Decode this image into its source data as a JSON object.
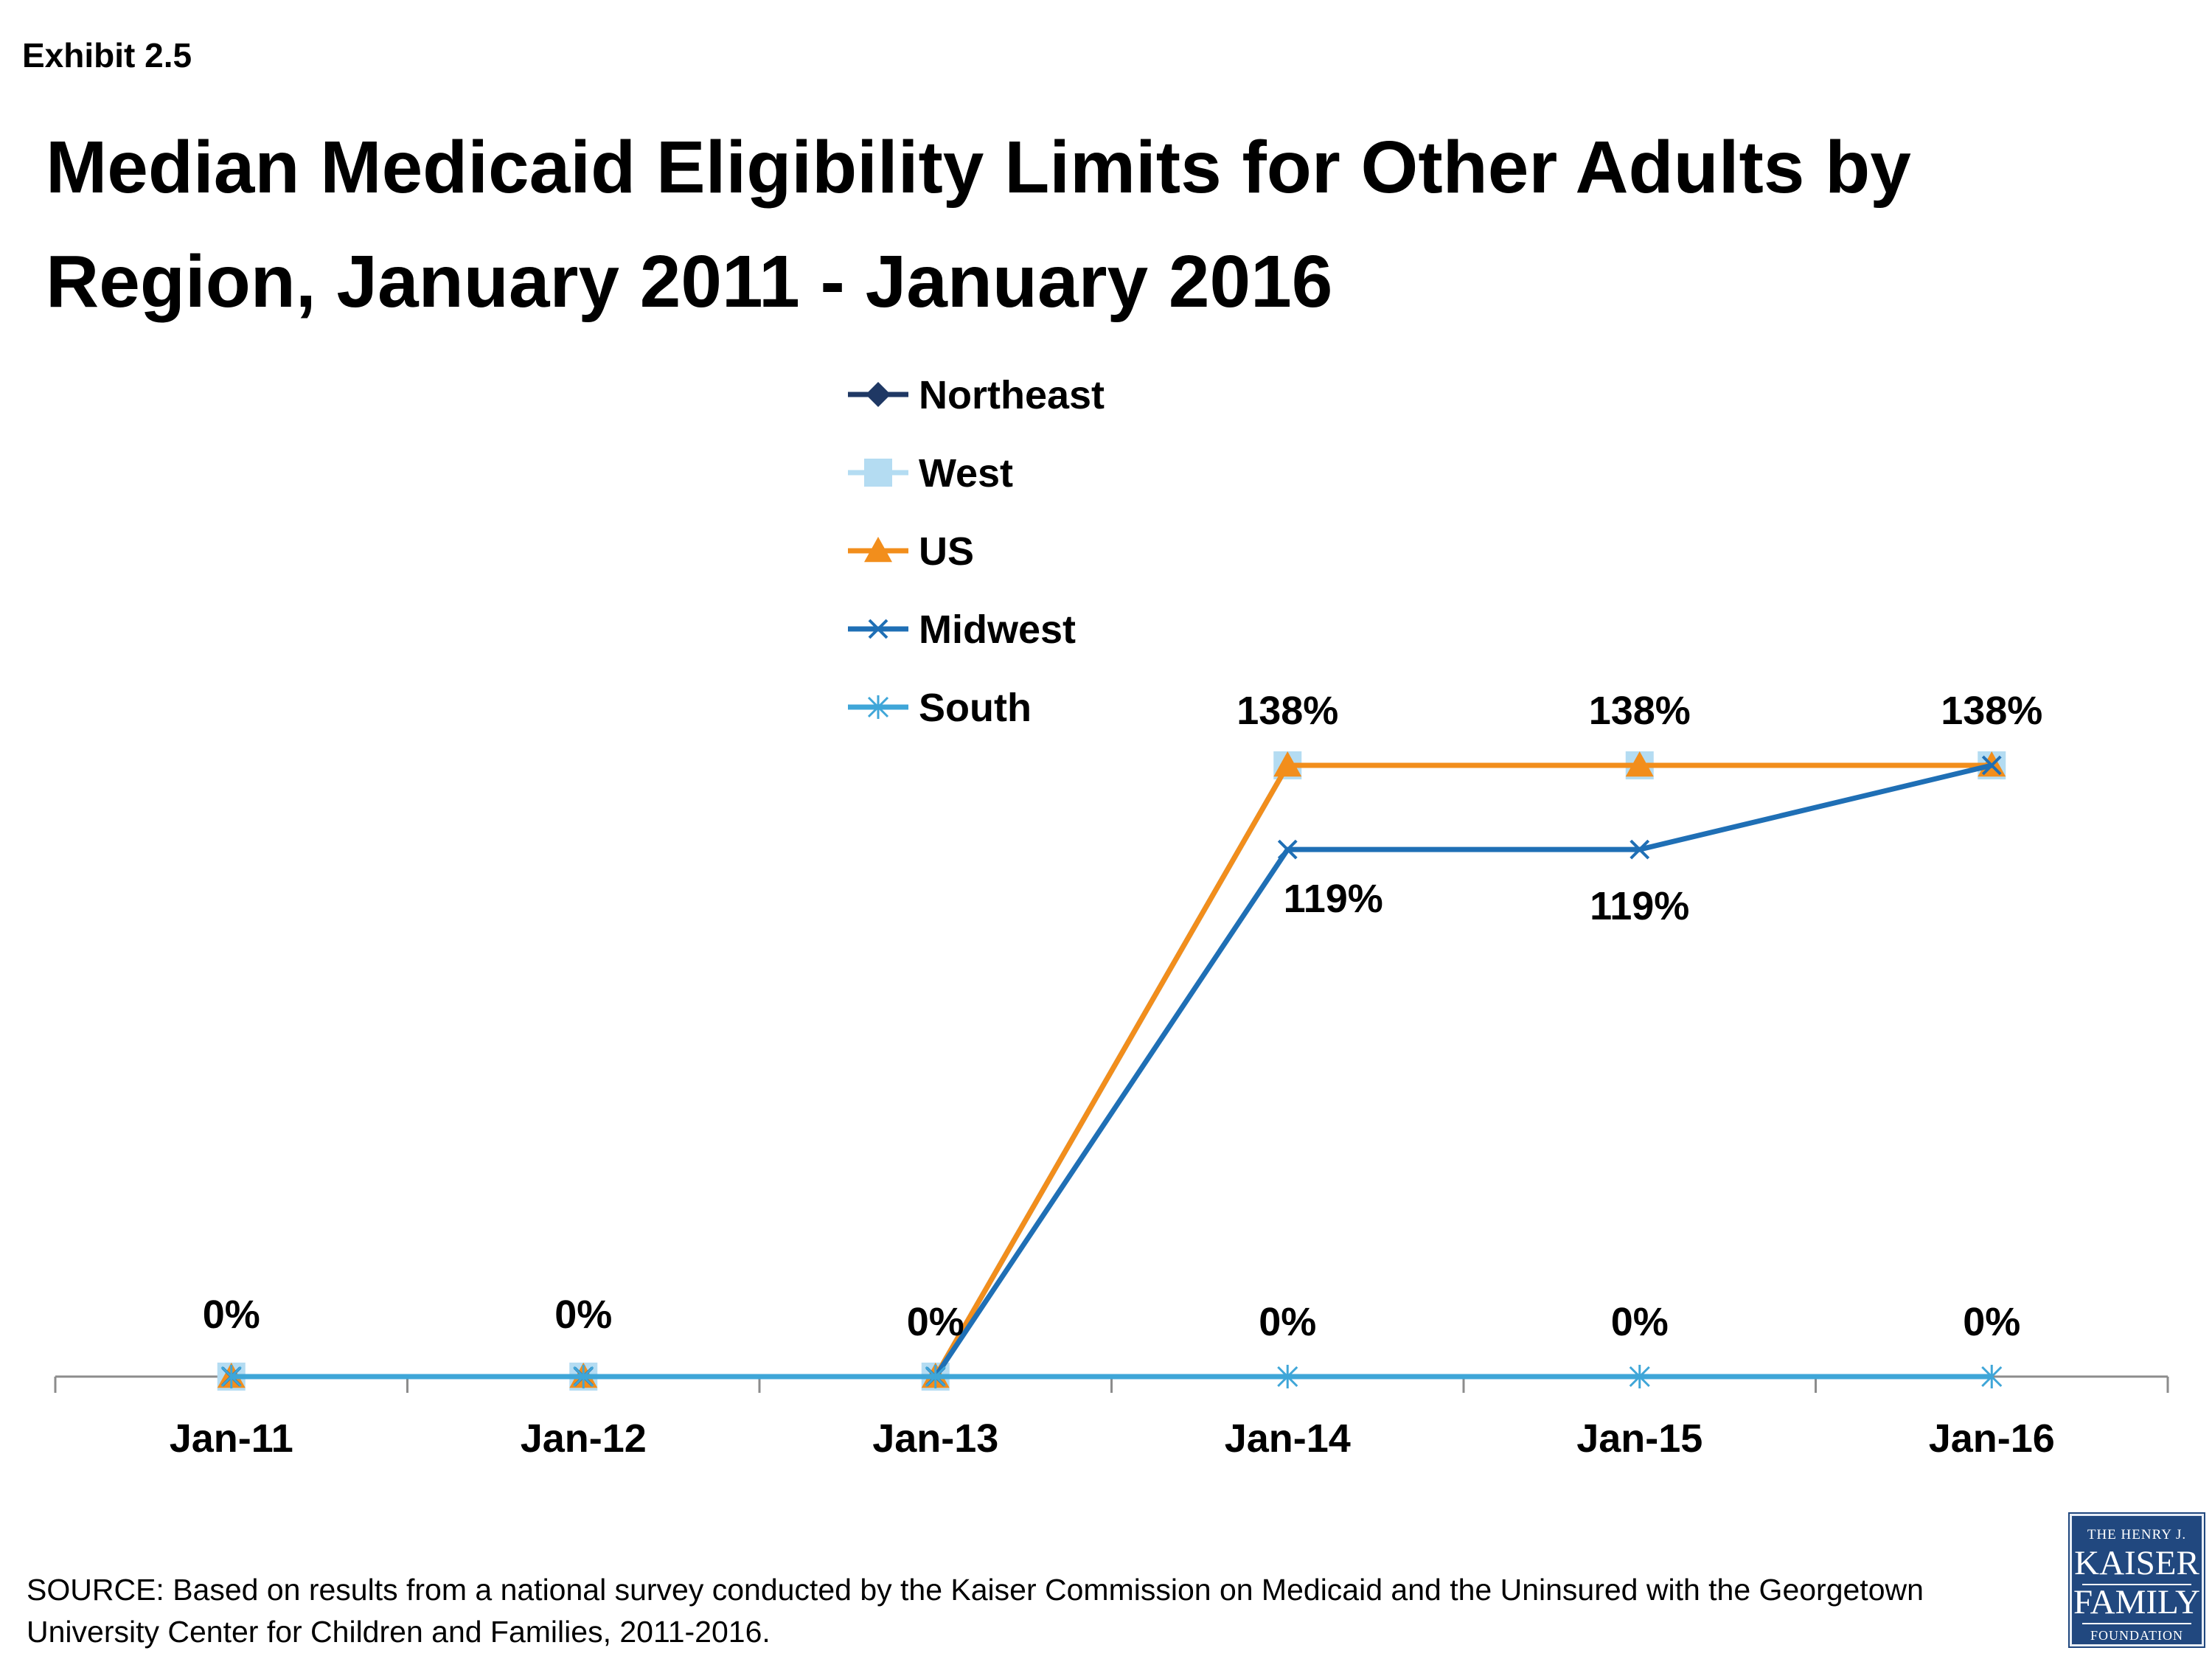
{
  "header": {
    "exhibit_label": "Exhibit 2.5",
    "title": "Median Medicaid Eligibility Limits for Other Adults by Region, January 2011 - January 2016"
  },
  "chart_data": {
    "type": "line",
    "categories": [
      "Jan-11",
      "Jan-12",
      "Jan-13",
      "Jan-14",
      "Jan-15",
      "Jan-16"
    ],
    "ylim": [
      0,
      138
    ],
    "grid": false,
    "legend_position": "top-center",
    "series": [
      {
        "name": "Northeast",
        "values": [
          0,
          0,
          0,
          138,
          138,
          138
        ],
        "color": "#1f3864",
        "marker": "diamond"
      },
      {
        "name": "West",
        "values": [
          0,
          0,
          0,
          138,
          138,
          138
        ],
        "color": "#b4dcf2",
        "marker": "square"
      },
      {
        "name": "US",
        "values": [
          0,
          0,
          0,
          138,
          138,
          138
        ],
        "color": "#f28e1c",
        "marker": "triangle"
      },
      {
        "name": "Midwest",
        "values": [
          0,
          0,
          0,
          119,
          119,
          138
        ],
        "color": "#1f6fb5",
        "marker": "x"
      },
      {
        "name": "South",
        "values": [
          0,
          0,
          0,
          0,
          0,
          0
        ],
        "color": "#3fa6d8",
        "marker": "star"
      }
    ],
    "data_labels": [
      {
        "series": "US",
        "index": 3,
        "text": "138%"
      },
      {
        "series": "US",
        "index": 4,
        "text": "138%"
      },
      {
        "series": "US",
        "index": 5,
        "text": "138%"
      },
      {
        "series": "Midwest",
        "index": 3,
        "text": "119%"
      },
      {
        "series": "Midwest",
        "index": 4,
        "text": "119%"
      },
      {
        "series": "South",
        "index": 0,
        "text": "0%"
      },
      {
        "series": "South",
        "index": 1,
        "text": "0%"
      },
      {
        "series": "South",
        "index": 2,
        "text": "0%"
      },
      {
        "series": "South",
        "index": 3,
        "text": "0%"
      },
      {
        "series": "South",
        "index": 4,
        "text": "0%"
      },
      {
        "series": "South",
        "index": 5,
        "text": "0%"
      }
    ]
  },
  "footer": {
    "source": "SOURCE:  Based on results from a national survey conducted by the Kaiser Commission on Medicaid and the Uninsured with the Georgetown University Center for Children and Families, 2011-2016.",
    "logo": {
      "line1": "THE HENRY J.",
      "line2": "KAISER",
      "line3": "FAMILY",
      "line4": "FOUNDATION"
    }
  }
}
